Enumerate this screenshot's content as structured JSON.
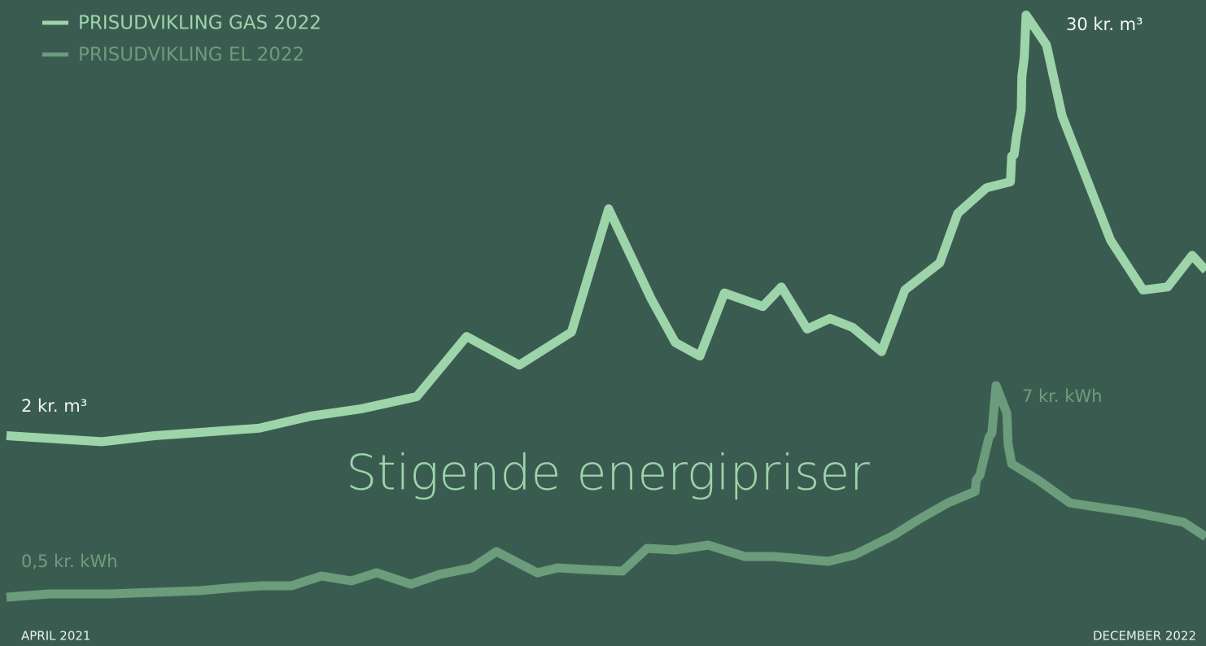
{
  "chart_data": {
    "type": "line",
    "title": "Stigende energipriser",
    "xlim": [
      0,
      20
    ],
    "xticks": [
      {
        "value": 0,
        "label": "APRIL 2021"
      },
      {
        "value": 20,
        "label": "DECEMBER 2022"
      }
    ],
    "ylim": [
      -12,
      31
    ],
    "y2lim": [
      -1,
      18.85
    ],
    "annotations": [
      "2 kr. m³",
      "30 kr. m³",
      "0,5 kr. kWh",
      "7 kr. kWh"
    ],
    "series": [
      {
        "name": "PRISUDVIKLING GAS 2022",
        "color": "#9dd4aa",
        "axis": "y",
        "x": [
          0,
          1.59,
          2.47,
          4.21,
          5.07,
          5.93,
          6.84,
          7.67,
          8.55,
          9.42,
          10.04,
          10.75,
          11.15,
          11.56,
          11.97,
          12.61,
          12.92,
          13.35,
          13.73,
          14.11,
          14.59,
          14.98,
          15.56,
          15.86,
          16.34,
          16.74,
          16.76,
          16.8,
          16.84,
          16.92,
          16.93,
          16.97,
          17.0,
          17.34,
          17.6,
          18.41,
          18.95,
          19.36,
          19.77,
          20
        ],
        "values": [
          2.0,
          1.6,
          2.0,
          2.5,
          3.3,
          3.8,
          4.6,
          8.6,
          6.7,
          8.9,
          17.1,
          11.1,
          8.2,
          7.3,
          11.5,
          10.6,
          11.9,
          9.1,
          9.8,
          9.2,
          7.6,
          11.7,
          13.5,
          16.8,
          18.5,
          18.9,
          20.6,
          20.7,
          21.9,
          23.7,
          25.9,
          27.2,
          30,
          28.0,
          23.3,
          15.0,
          11.7,
          11.9,
          14.0,
          13.0
        ]
      },
      {
        "name": "PRISUDVIKLING EL 2022",
        "color": "#6b9c7b",
        "axis": "y2",
        "x": [
          0,
          0.71,
          1.25,
          1.72,
          3.22,
          3.83,
          4.26,
          4.75,
          5.25,
          5.75,
          6.17,
          6.74,
          7.22,
          7.76,
          8.17,
          8.85,
          9.19,
          9.66,
          10.27,
          10.68,
          11.15,
          11.7,
          12.31,
          12.78,
          13.12,
          13.7,
          14.14,
          14.79,
          15.22,
          15.7,
          16.15,
          16.17,
          16.23,
          16.38,
          16.43,
          16.5,
          16.68,
          16.7,
          16.76,
          17.2,
          17.73,
          18.07,
          18.82,
          19.63,
          20
        ],
        "values": [
          0.5,
          0.6,
          0.6,
          0.6,
          0.7,
          0.8,
          0.85,
          0.85,
          1.15,
          1.0,
          1.25,
          0.9,
          1.2,
          1.4,
          1.9,
          1.25,
          1.4,
          1.35,
          1.3,
          2.0,
          1.95,
          2.1,
          1.75,
          1.75,
          1.7,
          1.6,
          1.8,
          2.4,
          2.9,
          3.4,
          3.75,
          4.1,
          4.25,
          5.4,
          5.55,
          7.0,
          6.15,
          5.2,
          4.6,
          4.1,
          3.4,
          3.3,
          3.1,
          2.8,
          2.35
        ]
      }
    ]
  }
}
